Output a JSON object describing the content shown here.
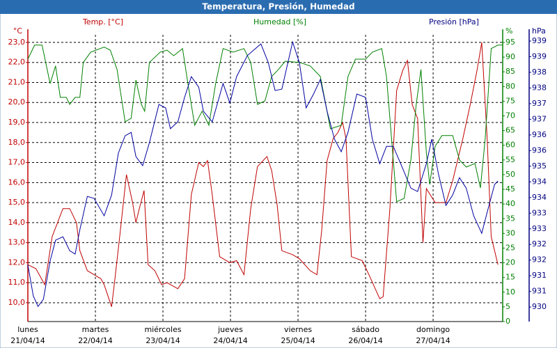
{
  "chart_data": {
    "type": "line",
    "title": "Temperatura, Presión, Humedad",
    "axis_titles": {
      "y": "Temp. [°C]",
      "y2": "Humedad [%]",
      "y3": "Presión [hPa]"
    },
    "axis_units": {
      "y": "°C",
      "y2": "%",
      "y3": "hPa"
    },
    "axis_colors": {
      "y": "#c00000",
      "y2": "#008000",
      "y3": "#000080"
    },
    "grid": true,
    "xlim": [
      0,
      7.03
    ],
    "xticks": [
      {
        "value": 0,
        "label": "lunes",
        "sublabel": "21/04/14"
      },
      {
        "value": 1,
        "label": "martes",
        "sublabel": "22/04/14"
      },
      {
        "value": 2,
        "label": "miércoles",
        "sublabel": "23/04/14"
      },
      {
        "value": 3,
        "label": "jueves",
        "sublabel": "24/04/14"
      },
      {
        "value": 4,
        "label": "viernes",
        "sublabel": "25/04/14"
      },
      {
        "value": 5,
        "label": "sábado",
        "sublabel": "26/04/14"
      },
      {
        "value": 6,
        "label": "domingo",
        "sublabel": "27/04/14"
      }
    ],
    "ylim": [
      9.06,
      23.38
    ],
    "yticks": [
      {
        "value": 10,
        "label": "10,0"
      },
      {
        "value": 11,
        "label": "11,0"
      },
      {
        "value": 12,
        "label": "12,0"
      },
      {
        "value": 13,
        "label": "13,0"
      },
      {
        "value": 14,
        "label": "14,0"
      },
      {
        "value": 15,
        "label": "15,0"
      },
      {
        "value": 16,
        "label": "16,0"
      },
      {
        "value": 17,
        "label": "17,0"
      },
      {
        "value": 18,
        "label": "18,0"
      },
      {
        "value": 19,
        "label": "19,0"
      },
      {
        "value": 20,
        "label": "20,0"
      },
      {
        "value": 21,
        "label": "21,0"
      },
      {
        "value": 22,
        "label": "22,0"
      },
      {
        "value": 23,
        "label": "23,0"
      }
    ],
    "y2lim": [
      0,
      97.6
    ],
    "y2ticks": [
      0,
      5,
      10,
      15,
      20,
      25,
      30,
      35,
      40,
      45,
      50,
      55,
      60,
      65,
      70,
      75,
      80,
      85,
      90,
      95
    ],
    "y3lim": [
      929.49,
      939.57
    ],
    "y3ticks": [
      {
        "value": 930,
        "label": "930"
      },
      {
        "value": 930.55,
        "label": "931"
      },
      {
        "value": 931.1,
        "label": "931"
      },
      {
        "value": 931.65,
        "label": "932"
      },
      {
        "value": 932.2,
        "label": "932"
      },
      {
        "value": 932.75,
        "label": "933"
      },
      {
        "value": 933.3,
        "label": "933"
      },
      {
        "value": 933.85,
        "label": "934"
      },
      {
        "value": 934.4,
        "label": "934"
      },
      {
        "value": 934.95,
        "label": "935"
      },
      {
        "value": 935.5,
        "label": "936"
      },
      {
        "value": 936.05,
        "label": "936"
      },
      {
        "value": 936.6,
        "label": "937"
      },
      {
        "value": 937.15,
        "label": "937"
      },
      {
        "value": 937.7,
        "label": "938"
      },
      {
        "value": 938.25,
        "label": "938"
      },
      {
        "value": 938.8,
        "label": "939"
      },
      {
        "value": 939.35,
        "label": "939"
      }
    ],
    "series": [
      {
        "axis": "y",
        "color": "#c00000",
        "x": [
          0,
          0.12,
          0.25,
          0.36,
          0.52,
          0.62,
          0.72,
          0.77,
          0.88,
          0.98,
          1.08,
          1.13,
          1.24,
          1.29,
          1.36,
          1.46,
          1.55,
          1.6,
          1.65,
          1.72,
          1.78,
          1.88,
          1.98,
          2.06,
          2.22,
          2.32,
          2.42,
          2.53,
          2.6,
          2.66,
          2.73,
          2.84,
          2.99,
          3.09,
          3.2,
          3.3,
          3.4,
          3.54,
          3.61,
          3.69,
          3.76,
          3.92,
          4.02,
          4.18,
          4.28,
          4.35,
          4.43,
          4.52,
          4.59,
          4.66,
          4.71,
          4.79,
          4.95,
          5.05,
          5.21,
          5.26,
          5.36,
          5.46,
          5.55,
          5.62,
          5.69,
          5.77,
          5.85,
          5.9,
          6.03,
          6.19,
          6.29,
          6.44,
          6.55,
          6.65,
          6.72,
          6.8,
          6.86,
          6.96
        ],
        "values": [
          11.9,
          11.7,
          10.9,
          13.3,
          14.7,
          14.7,
          14.0,
          12.6,
          11.6,
          11.4,
          11.2,
          10.9,
          9.8,
          11.2,
          13.3,
          16.4,
          15.0,
          14.0,
          14.7,
          15.6,
          11.9,
          11.6,
          10.9,
          11.0,
          10.7,
          11.2,
          15.4,
          17.0,
          16.8,
          17.1,
          15.4,
          12.3,
          12.0,
          12.1,
          11.4,
          14.7,
          16.8,
          17.3,
          16.6,
          14.9,
          12.6,
          12.4,
          12.2,
          11.6,
          11.4,
          13.6,
          17.1,
          18.2,
          18.5,
          19.0,
          18.2,
          12.3,
          12.1,
          11.4,
          10.2,
          10.3,
          14.7,
          20.6,
          21.6,
          22.1,
          19.9,
          19.2,
          13.0,
          15.7,
          15.0,
          15.0,
          16.1,
          18.2,
          19.9,
          21.6,
          23.0,
          18.2,
          13.3,
          11.9
        ]
      },
      {
        "axis": "y2",
        "color": "#008000",
        "x": [
          0,
          0.1,
          0.21,
          0.33,
          0.41,
          0.48,
          0.57,
          0.62,
          0.7,
          0.77,
          0.82,
          0.93,
          1.13,
          1.22,
          1.32,
          1.44,
          1.53,
          1.6,
          1.68,
          1.73,
          1.8,
          1.96,
          2.06,
          2.16,
          2.29,
          2.37,
          2.47,
          2.58,
          2.68,
          2.78,
          2.89,
          3.04,
          3.2,
          3.3,
          3.4,
          3.51,
          3.61,
          3.71,
          3.81,
          4.02,
          4.18,
          4.33,
          4.48,
          4.64,
          4.74,
          4.85,
          5.0,
          5.1,
          5.24,
          5.31,
          5.36,
          5.46,
          5.57,
          5.67,
          5.75,
          5.82,
          5.9,
          5.95,
          6.03,
          6.13,
          6.29,
          6.39,
          6.49,
          6.62,
          6.7,
          6.77,
          6.86,
          6.96,
          7.03
        ],
        "values": [
          89.3,
          94.1,
          94.1,
          81.0,
          87.0,
          76.3,
          76.3,
          73.9,
          76.3,
          76.3,
          88.2,
          91.7,
          93.4,
          92.4,
          85.8,
          68.0,
          69.2,
          82.2,
          73.9,
          71.6,
          88.2,
          91.7,
          92.4,
          90.5,
          92.9,
          81.0,
          66.8,
          71.6,
          66.8,
          81.0,
          92.9,
          91.7,
          92.9,
          88.2,
          73.9,
          75.1,
          83.4,
          85.8,
          88.6,
          88.2,
          87.0,
          83.4,
          65.6,
          66.8,
          83.4,
          89.3,
          89.3,
          91.7,
          92.9,
          83.4,
          69.2,
          40.8,
          41.9,
          55.0,
          73.9,
          85.8,
          57.3,
          46.7,
          59.7,
          63.3,
          63.3,
          55.0,
          52.6,
          53.8,
          45.5,
          62.1,
          92.9,
          94.1,
          94.1
        ]
      },
      {
        "axis": "y3",
        "color": "#0000a0",
        "x": [
          0,
          0.08,
          0.15,
          0.23,
          0.33,
          0.41,
          0.52,
          0.62,
          0.7,
          0.77,
          0.88,
          0.98,
          1.13,
          1.24,
          1.34,
          1.44,
          1.53,
          1.6,
          1.7,
          1.8,
          1.94,
          2.04,
          2.11,
          2.22,
          2.32,
          2.42,
          2.53,
          2.6,
          2.73,
          2.89,
          2.99,
          3.09,
          3.25,
          3.45,
          3.56,
          3.66,
          3.76,
          3.92,
          4.02,
          4.12,
          4.23,
          4.33,
          4.43,
          4.54,
          4.64,
          4.74,
          4.87,
          5.0,
          5.1,
          5.21,
          5.31,
          5.41,
          5.52,
          5.67,
          5.77,
          5.9,
          5.98,
          6.08,
          6.19,
          6.29,
          6.39,
          6.49,
          6.6,
          6.72,
          6.8,
          6.91,
          6.96
        ],
        "values": [
          931.49,
          930.39,
          930.02,
          930.27,
          931.62,
          932.35,
          932.47,
          931.98,
          931.86,
          932.72,
          933.89,
          933.82,
          933.21,
          933.94,
          935.41,
          936.02,
          936.14,
          935.29,
          934.97,
          935.78,
          937.12,
          937.0,
          936.27,
          936.51,
          937.37,
          938.1,
          937.73,
          936.88,
          936.51,
          937.86,
          937.17,
          938.1,
          938.84,
          939.25,
          938.59,
          937.61,
          937.66,
          939.32,
          938.59,
          937.0,
          937.49,
          938.0,
          936.88,
          935.9,
          935.46,
          936.14,
          937.49,
          937.37,
          935.9,
          935.04,
          935.65,
          935.65,
          935.04,
          934.18,
          934.06,
          935.04,
          935.9,
          934.67,
          933.57,
          933.94,
          934.55,
          934.18,
          933.21,
          932.59,
          933.33,
          934.31,
          934.43
        ]
      }
    ]
  }
}
